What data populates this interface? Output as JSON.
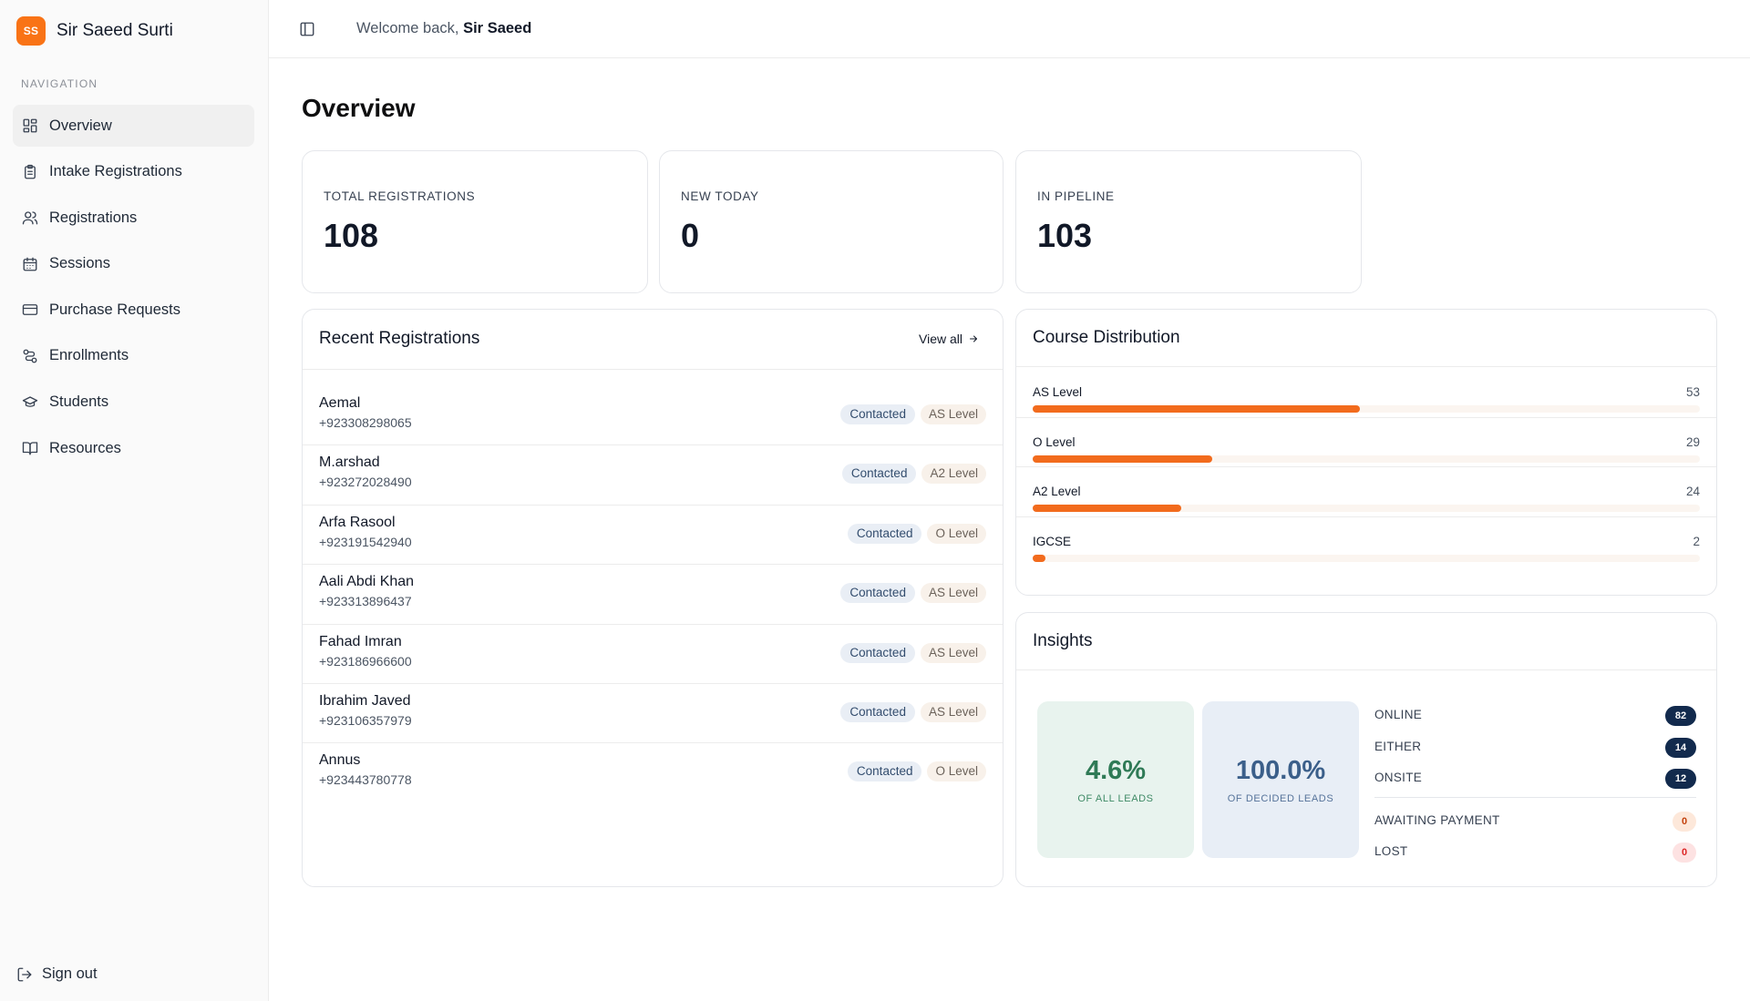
{
  "brand": {
    "initials": "SS",
    "name": "Sir Saeed Surti"
  },
  "nav": {
    "heading": "NAVIGATION",
    "items": [
      {
        "label": "Overview",
        "icon": "layout-grid-icon",
        "active": true
      },
      {
        "label": "Intake Registrations",
        "icon": "clipboard-list-icon"
      },
      {
        "label": "Registrations",
        "icon": "users-icon"
      },
      {
        "label": "Sessions",
        "icon": "calendar-icon"
      },
      {
        "label": "Purchase Requests",
        "icon": "credit-card-icon"
      },
      {
        "label": "Enrollments",
        "icon": "route-icon"
      },
      {
        "label": "Students",
        "icon": "graduation-cap-icon"
      },
      {
        "label": "Resources",
        "icon": "book-open-icon"
      }
    ],
    "signout": "Sign out"
  },
  "header": {
    "welcome_prefix": "Welcome back,",
    "user": "Sir Saeed"
  },
  "page_title": "Overview",
  "stats": [
    {
      "label": "TOTAL REGISTRATIONS",
      "value": "108"
    },
    {
      "label": "NEW TODAY",
      "value": "0"
    },
    {
      "label": "IN PIPELINE",
      "value": "103"
    }
  ],
  "recent": {
    "title": "Recent Registrations",
    "view_all": "View all",
    "rows": [
      {
        "name": "Aemal",
        "phone": "+923308298065",
        "status": "Contacted",
        "level": "AS Level"
      },
      {
        "name": "M.arshad",
        "phone": "+923272028490",
        "status": "Contacted",
        "level": "A2 Level"
      },
      {
        "name": "Arfa Rasool",
        "phone": "+923191542940",
        "status": "Contacted",
        "level": "O Level"
      },
      {
        "name": "Aali Abdi Khan",
        "phone": "+923313896437",
        "status": "Contacted",
        "level": "AS Level"
      },
      {
        "name": "Fahad Imran",
        "phone": "+923186966600",
        "status": "Contacted",
        "level": "AS Level"
      },
      {
        "name": "Ibrahim Javed",
        "phone": "+923106357979",
        "status": "Contacted",
        "level": "AS Level"
      },
      {
        "name": "Annus",
        "phone": "+923443780778",
        "status": "Contacted",
        "level": "O Level"
      }
    ]
  },
  "distribution": {
    "title": "Course Distribution",
    "bar_color": "#f26b1d",
    "max": 108,
    "items": [
      {
        "name": "AS Level",
        "count": "53",
        "value": 53
      },
      {
        "name": "O Level",
        "count": "29",
        "value": 29
      },
      {
        "name": "A2 Level",
        "count": "24",
        "value": 24
      },
      {
        "name": "IGCSE",
        "count": "2",
        "value": 2
      }
    ]
  },
  "insights": {
    "title": "Insights",
    "all_leads": {
      "pct": "4.6%",
      "label": "OF ALL LEADS"
    },
    "decided_leads": {
      "pct": "100.0%",
      "label": "OF DECIDED LEADS"
    },
    "modes": [
      {
        "label": "ONLINE",
        "count": "82",
        "style": "dark"
      },
      {
        "label": "EITHER",
        "count": "14",
        "style": "dark"
      },
      {
        "label": "ONSITE",
        "count": "12",
        "style": "dark"
      }
    ],
    "outcomes": [
      {
        "label": "AWAITING PAYMENT",
        "count": "0",
        "style": "orange"
      },
      {
        "label": "LOST",
        "count": "0",
        "style": "red"
      }
    ]
  }
}
